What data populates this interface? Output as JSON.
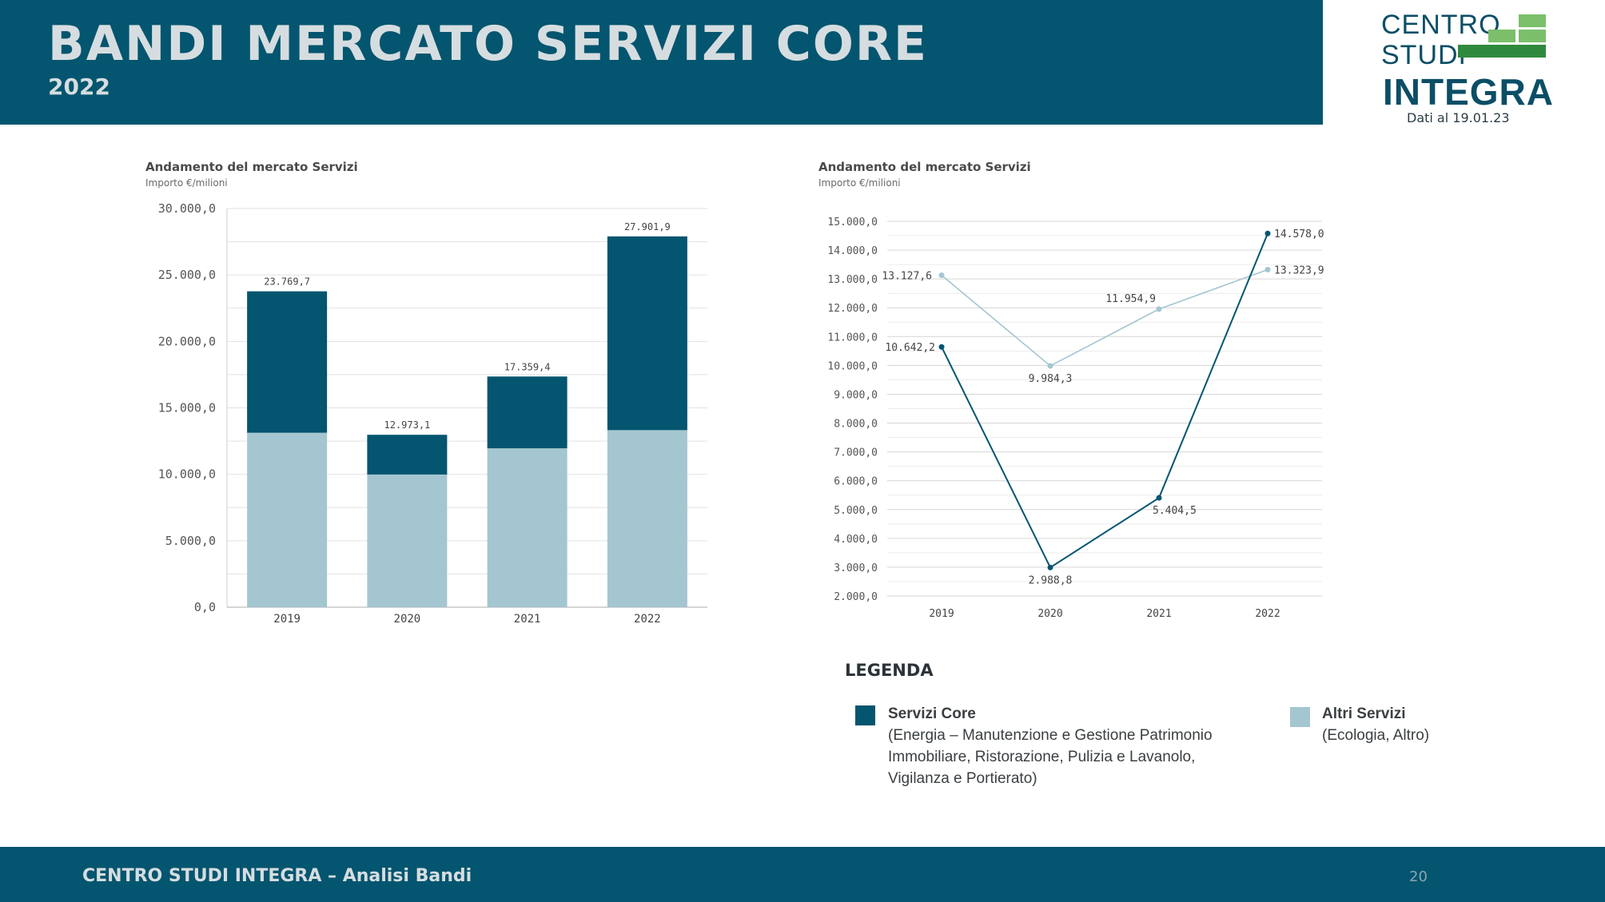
{
  "header": {
    "title": "BANDI MERCATO SERVIZI CORE",
    "year": "2022"
  },
  "logo": {
    "line1": "CENTRO",
    "line2": "STUDI",
    "line3": "INTEGRA",
    "date": "Dati al 19.01.23",
    "accent": "#2f8a3e",
    "accent_light": "#7bbf6a"
  },
  "colors": {
    "brand": "#04556f",
    "core": "#04556f",
    "altri": "#a4c6d0"
  },
  "chart_data": [
    {
      "type": "bar",
      "stacked": true,
      "title": "Andamento del mercato Servizi",
      "subtitle": "Importo €/milioni",
      "categories": [
        "2019",
        "2020",
        "2021",
        "2022"
      ],
      "series": [
        {
          "name": "Altri Servizi",
          "values": [
            13127.6,
            9984.3,
            11954.9,
            13323.9
          ]
        },
        {
          "name": "Servizi Core",
          "values": [
            10642.2,
            2988.8,
            5404.5,
            14578.0
          ]
        }
      ],
      "total_labels": [
        "23.769,7",
        "12.973,1",
        "17.359,4",
        "27.901,9"
      ],
      "ylim": [
        0,
        30000
      ],
      "yticks": [
        0,
        5000,
        10000,
        15000,
        20000,
        25000,
        30000
      ],
      "ytick_labels": [
        "0,0",
        "5.000,0",
        "10.000,0",
        "15.000,0",
        "20.000,0",
        "25.000,0",
        "30.000,0"
      ]
    },
    {
      "type": "line",
      "title": "Andamento del mercato Servizi",
      "subtitle": "Importo €/milioni",
      "categories": [
        "2019",
        "2020",
        "2021",
        "2022"
      ],
      "series": [
        {
          "name": "Altri Servizi",
          "values": [
            13127.6,
            9984.3,
            11954.9,
            13323.9
          ],
          "labels": [
            "13.127,6",
            "9.984,3",
            "11.954,9",
            "13.323,9"
          ]
        },
        {
          "name": "Servizi Core",
          "values": [
            10642.2,
            2988.8,
            5404.5,
            14578.0
          ],
          "labels": [
            "10.642,2",
            "2.988,8",
            "5.404,5",
            "14.578,0"
          ]
        }
      ],
      "ylim": [
        2000,
        15000
      ],
      "yticks": [
        2000,
        3000,
        4000,
        5000,
        6000,
        7000,
        8000,
        9000,
        10000,
        11000,
        12000,
        13000,
        14000,
        15000
      ],
      "ytick_labels": [
        "2.000,0",
        "3.000,0",
        "4.000,0",
        "5.000,0",
        "6.000,0",
        "7.000,0",
        "8.000,0",
        "9.000,0",
        "10.000,0",
        "11.000,0",
        "12.000,0",
        "13.000,0",
        "14.000,0",
        "15.000,0"
      ]
    }
  ],
  "legend": {
    "title": "LEGENDA",
    "core": {
      "name": "Servizi Core",
      "desc_lines": [
        "(Energia – Manutenzione e Gestione Patrimonio",
        "Immobiliare, Ristorazione, Pulizia e Lavanolo,",
        "Vigilanza e Portierato)"
      ]
    },
    "altri": {
      "name": "Altri Servizi",
      "desc": "(Ecologia, Altro)"
    }
  },
  "footer": {
    "text": "CENTRO STUDI INTEGRA – Analisi Bandi",
    "page": "20"
  }
}
